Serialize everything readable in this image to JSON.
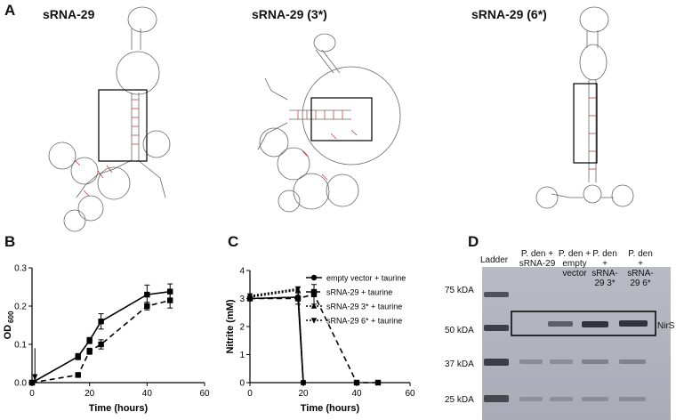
{
  "panels": {
    "A": {
      "letter": "A",
      "titles": [
        "sRNA-29",
        "sRNA-29 (3*)",
        "sRNA-29 (6*)"
      ]
    },
    "B": {
      "letter": "B",
      "chart_data": {
        "type": "line",
        "xlabel": "Time (hours)",
        "ylabel": "OD",
        "ylabel_sub": "600",
        "xlim": [
          0,
          60
        ],
        "ylim": [
          0,
          0.3
        ],
        "xticks": [
          0,
          20,
          40,
          60
        ],
        "yticks": [
          0.0,
          0.1,
          0.2,
          0.3
        ],
        "ytick_labels": [
          "0.0",
          "0.1",
          "0.2",
          "0.3"
        ],
        "series": [
          {
            "style": "solid",
            "x": [
              0,
              16,
              20,
              24,
              40,
              48
            ],
            "y": [
              0.0,
              0.068,
              0.11,
              0.16,
              0.23,
              0.238
            ],
            "err": [
              0,
              0.008,
              0.008,
              0.02,
              0.025,
              0.02
            ]
          },
          {
            "style": "dashed",
            "x": [
              0,
              16,
              20,
              24,
              40,
              48
            ],
            "y": [
              0.0,
              0.02,
              0.082,
              0.1,
              0.2,
              0.215
            ],
            "err": [
              0,
              0.004,
              0.008,
              0.012,
              0.01,
              0.02
            ]
          }
        ],
        "arrow_x": 1
      }
    },
    "C": {
      "letter": "C",
      "chart_data": {
        "type": "line",
        "xlabel": "Time (hours)",
        "ylabel": "Nitrite (mM)",
        "xlim": [
          0,
          60
        ],
        "ylim": [
          0,
          4
        ],
        "xticks": [
          0,
          20,
          40,
          60
        ],
        "yticks": [
          0,
          1,
          2,
          3,
          4
        ],
        "series": [
          {
            "name": "empty vector + taurine",
            "marker": "circle",
            "style": "solid",
            "x": [
              0,
              18,
              20
            ],
            "y": [
              3.0,
              3.05,
              0.0
            ]
          },
          {
            "name": "sRNA-29 + taurine",
            "marker": "square",
            "style": "dashed",
            "x": [
              0,
              18,
              24,
              40,
              48
            ],
            "y": [
              3.0,
              3.0,
              3.15,
              0.0,
              0.0
            ],
            "err": [
              0,
              0.2,
              0.35,
              0,
              0
            ]
          },
          {
            "name": "sRNA-29 3* + taurine",
            "marker": "triangle-up",
            "style": "dotted",
            "x": [
              0,
              18,
              20
            ],
            "y": [
              3.05,
              3.3,
              0.0
            ]
          },
          {
            "name": "sRNA-29 6* + taurine",
            "marker": "triangle-down",
            "style": "dotted",
            "x": [
              0,
              18,
              20
            ],
            "y": [
              3.1,
              3.35,
              0.0
            ]
          }
        ]
      }
    },
    "D": {
      "letter": "D",
      "ladder_label": "Ladder",
      "lane_labels": [
        "P. den +\nsRNA-29",
        "P. den +\nempty\nvector",
        "P. den\n+\nsRNA-\n29 3*",
        "P. den\n+\nsRNA-\n29 6*"
      ],
      "markers": [
        "75 kDA",
        "50 kDA",
        "37 kDA",
        "25 kDA"
      ],
      "band_label": "NirS"
    }
  }
}
